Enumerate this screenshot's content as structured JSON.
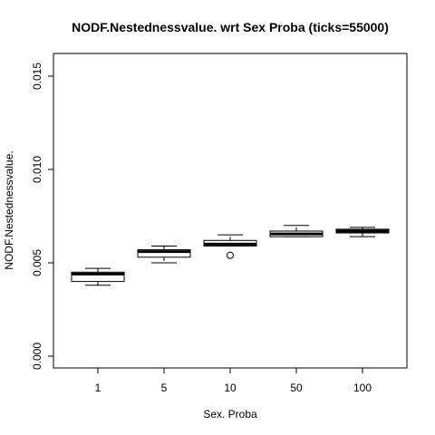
{
  "chart_data": {
    "type": "boxplot",
    "title": "NODF.Nestednessvalue. wrt Sex Proba (ticks=55000)",
    "xlabel": "Sex. Proba",
    "ylabel": "NODF.Nestednessvalue.",
    "ylim": [
      0,
      0.0165
    ],
    "y_ticks": [
      "0.000",
      "0.005",
      "0.010",
      "0.015"
    ],
    "y_tick_values": [
      0,
      0.005,
      0.01,
      0.015
    ],
    "categories": [
      "1",
      "5",
      "10",
      "50",
      "100"
    ],
    "boxes": [
      {
        "category": "1",
        "whisker_low": 0.0038,
        "q1": 0.004,
        "median": 0.0044,
        "q3": 0.0045,
        "whisker_high": 0.0047,
        "outliers": []
      },
      {
        "category": "5",
        "whisker_low": 0.005,
        "q1": 0.0053,
        "median": 0.0056,
        "q3": 0.0057,
        "whisker_high": 0.0059,
        "outliers": []
      },
      {
        "category": "10",
        "whisker_low": 0.0059,
        "q1": 0.0059,
        "median": 0.006,
        "q3": 0.0062,
        "whisker_high": 0.0065,
        "outliers": [
          0.0054
        ]
      },
      {
        "category": "50",
        "whisker_low": 0.0064,
        "q1": 0.0064,
        "median": 0.00655,
        "q3": 0.0067,
        "whisker_high": 0.007,
        "outliers": []
      },
      {
        "category": "100",
        "whisker_low": 0.0064,
        "q1": 0.0066,
        "median": 0.0067,
        "q3": 0.0068,
        "whisker_high": 0.0069,
        "outliers": []
      }
    ],
    "grid": false,
    "legend": "none"
  }
}
